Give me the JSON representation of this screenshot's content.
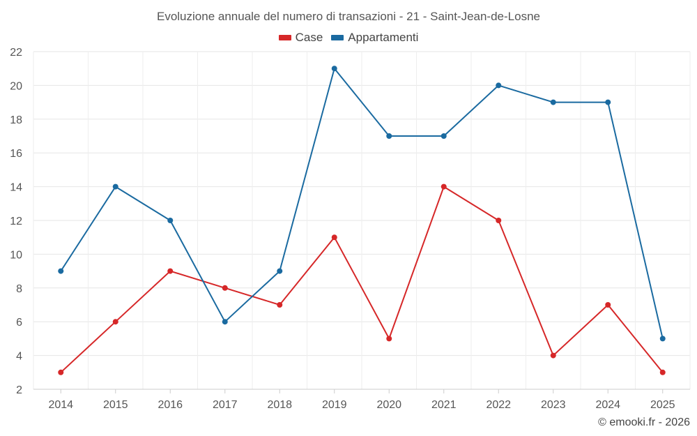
{
  "chart_data": {
    "type": "line",
    "title": "Evoluzione annuale del numero di transazioni - 21 - Saint-Jean-de-Losne",
    "xlabel": "",
    "ylabel": "",
    "categories": [
      "2014",
      "2015",
      "2016",
      "2017",
      "2018",
      "2019",
      "2020",
      "2021",
      "2022",
      "2023",
      "2024",
      "2025"
    ],
    "ylim": [
      2,
      22
    ],
    "yticks": [
      2,
      4,
      6,
      8,
      10,
      12,
      14,
      16,
      18,
      20,
      22
    ],
    "grid": true,
    "legend_position": "top-center",
    "series": [
      {
        "name": "Case",
        "color": "#d62728",
        "values": [
          3,
          6,
          9,
          8,
          7,
          11,
          5,
          14,
          12,
          4,
          7,
          3
        ]
      },
      {
        "name": "Appartamenti",
        "color": "#1a6aa0",
        "values": [
          9,
          14,
          12,
          6,
          9,
          21,
          17,
          17,
          20,
          19,
          19,
          5
        ]
      }
    ]
  },
  "credit": "© emooki.fr - 2026"
}
